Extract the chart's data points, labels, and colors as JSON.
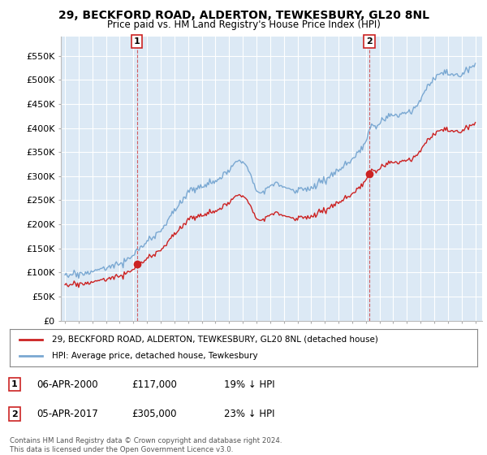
{
  "title": "29, BECKFORD ROAD, ALDERTON, TEWKESBURY, GL20 8NL",
  "subtitle": "Price paid vs. HM Land Registry's House Price Index (HPI)",
  "ylabel_ticks": [
    "£0",
    "£50K",
    "£100K",
    "£150K",
    "£200K",
    "£250K",
    "£300K",
    "£350K",
    "£400K",
    "£450K",
    "£500K",
    "£550K"
  ],
  "ytick_values": [
    0,
    50000,
    100000,
    150000,
    200000,
    250000,
    300000,
    350000,
    400000,
    450000,
    500000,
    550000
  ],
  "legend_line1": "29, BECKFORD ROAD, ALDERTON, TEWKESBURY, GL20 8NL (detached house)",
  "legend_line2": "HPI: Average price, detached house, Tewkesbury",
  "marker1_label": "1",
  "marker1_date": "06-APR-2000",
  "marker1_price": "£117,000",
  "marker1_hpi": "19% ↓ HPI",
  "marker2_label": "2",
  "marker2_date": "05-APR-2017",
  "marker2_price": "£305,000",
  "marker2_hpi": "23% ↓ HPI",
  "footer": "Contains HM Land Registry data © Crown copyright and database right 2024.\nThis data is licensed under the Open Government Licence v3.0.",
  "hpi_color": "#7aa8d2",
  "price_color": "#cc2222",
  "marker_color": "#cc2222",
  "background_color": "#ffffff",
  "plot_bg_color": "#dce9f5",
  "grid_color": "#ffffff"
}
